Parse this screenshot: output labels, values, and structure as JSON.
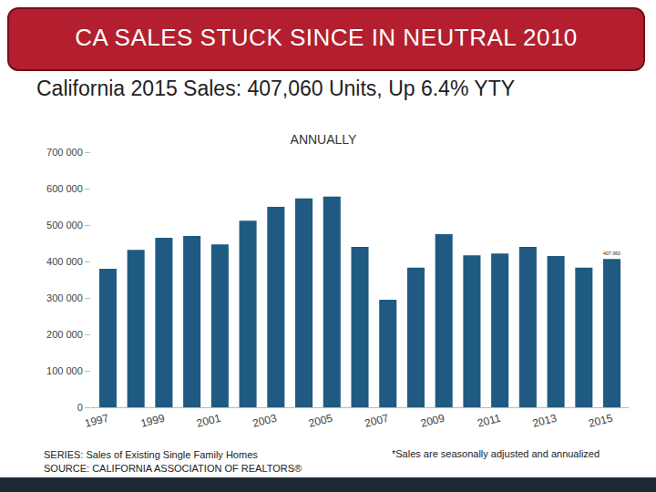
{
  "chart_data": {
    "type": "bar",
    "title": "CA SALES STUCK SINCE IN NEUTRAL 2010",
    "subtitle": "California 2015 Sales: 407,060 Units, Up 6.4% YTY",
    "notes": {
      "label": "ANNUALLY",
      "series": "SERIES: Sales of Existing Single Family Homes",
      "source": "SOURCE: CALIFORNIA ASSOCIATION OF REALTORS®",
      "footnote": "*Sales are seasonally adjusted and annualized"
    },
    "categories": [
      "1997",
      null,
      "1999",
      null,
      "2001",
      null,
      "2003",
      null,
      "2005",
      null,
      "2007",
      null,
      "2009",
      null,
      "2011",
      null,
      "2013",
      null,
      "2015"
    ],
    "values": [
      380000,
      432000,
      465000,
      470000,
      447000,
      512000,
      550000,
      573000,
      578000,
      440000,
      295000,
      383000,
      475000,
      417000,
      422000,
      440000,
      415000,
      383000,
      407060
    ],
    "data_labels": true,
    "value_labels": [
      null,
      null,
      null,
      null,
      null,
      null,
      null,
      null,
      null,
      null,
      null,
      null,
      null,
      null,
      null,
      null,
      null,
      null,
      "407 060"
    ],
    "color": "#1f5a82",
    "ylim": [
      0,
      700000
    ],
    "yticks": [
      0,
      {
        "value": 100000,
        "label": "100 000"
      },
      {
        "value": 200000,
        "label": "200 000"
      },
      {
        "value": 300000,
        "label": "300 000"
      },
      {
        "value": 400000,
        "label": "400 000"
      },
      {
        "value": 500000,
        "label": "500 000"
      },
      {
        "value": 600000,
        "label": "600 000"
      },
      {
        "value": 700000,
        "label": "700 000"
      }
    ],
    "grid": false
  }
}
